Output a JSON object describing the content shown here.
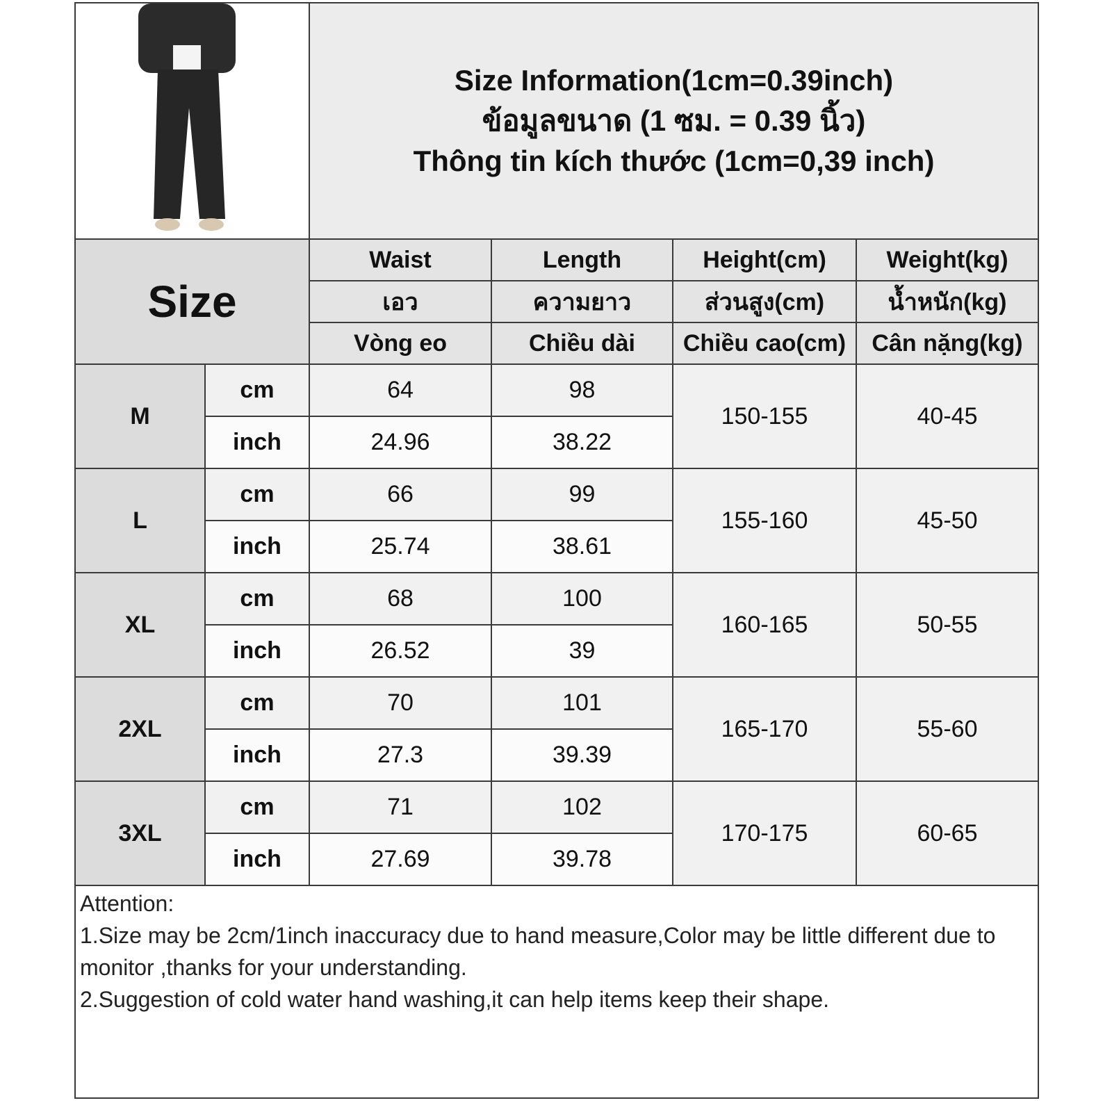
{
  "title": {
    "line1": "Size Information(1cm=0.39inch)",
    "line2": "ข้อมูลขนาด (1 ซม. = 0.39 นิ้ว)",
    "line3": "Thông tin kích thước (1cm=0,39 inch)"
  },
  "size_header": "Size",
  "columns": [
    {
      "en": "Waist",
      "th": "เอว",
      "vi": "Vòng eo"
    },
    {
      "en": "Length",
      "th": "ความยาว",
      "vi": "Chiều dài"
    },
    {
      "en": "Height(cm)",
      "th": "ส่วนสูง(cm)",
      "vi": "Chiều cao(cm)"
    },
    {
      "en": "Weight(kg)",
      "th": "น้ำหนัก(kg)",
      "vi": "Cân nặng(kg)"
    }
  ],
  "units": {
    "cm": "cm",
    "inch": "inch"
  },
  "rows": [
    {
      "size": "M",
      "cm": {
        "waist": "64",
        "length": "98"
      },
      "inch": {
        "waist": "24.96",
        "length": "38.22"
      },
      "height": "150-155",
      "weight": "40-45"
    },
    {
      "size": "L",
      "cm": {
        "waist": "66",
        "length": "99"
      },
      "inch": {
        "waist": "25.74",
        "length": "38.61"
      },
      "height": "155-160",
      "weight": "45-50"
    },
    {
      "size": "XL",
      "cm": {
        "waist": "68",
        "length": "100"
      },
      "inch": {
        "waist": "26.52",
        "length": "39"
      },
      "height": "160-165",
      "weight": "50-55"
    },
    {
      "size": "2XL",
      "cm": {
        "waist": "70",
        "length": "101"
      },
      "inch": {
        "waist": "27.3",
        "length": "39.39"
      },
      "height": "165-170",
      "weight": "55-60"
    },
    {
      "size": "3XL",
      "cm": {
        "waist": "71",
        "length": "102"
      },
      "inch": {
        "waist": "27.69",
        "length": "39.78"
      },
      "height": "170-175",
      "weight": "60-65"
    }
  ],
  "attention": {
    "heading": "Attention:",
    "note1": "1.Size may be 2cm/1inch inaccuracy due to hand measure,Color may be little different due to monitor ,thanks for your understanding.",
    "note2": "2.Suggestion of cold water hand washing,it can help items keep their shape."
  }
}
